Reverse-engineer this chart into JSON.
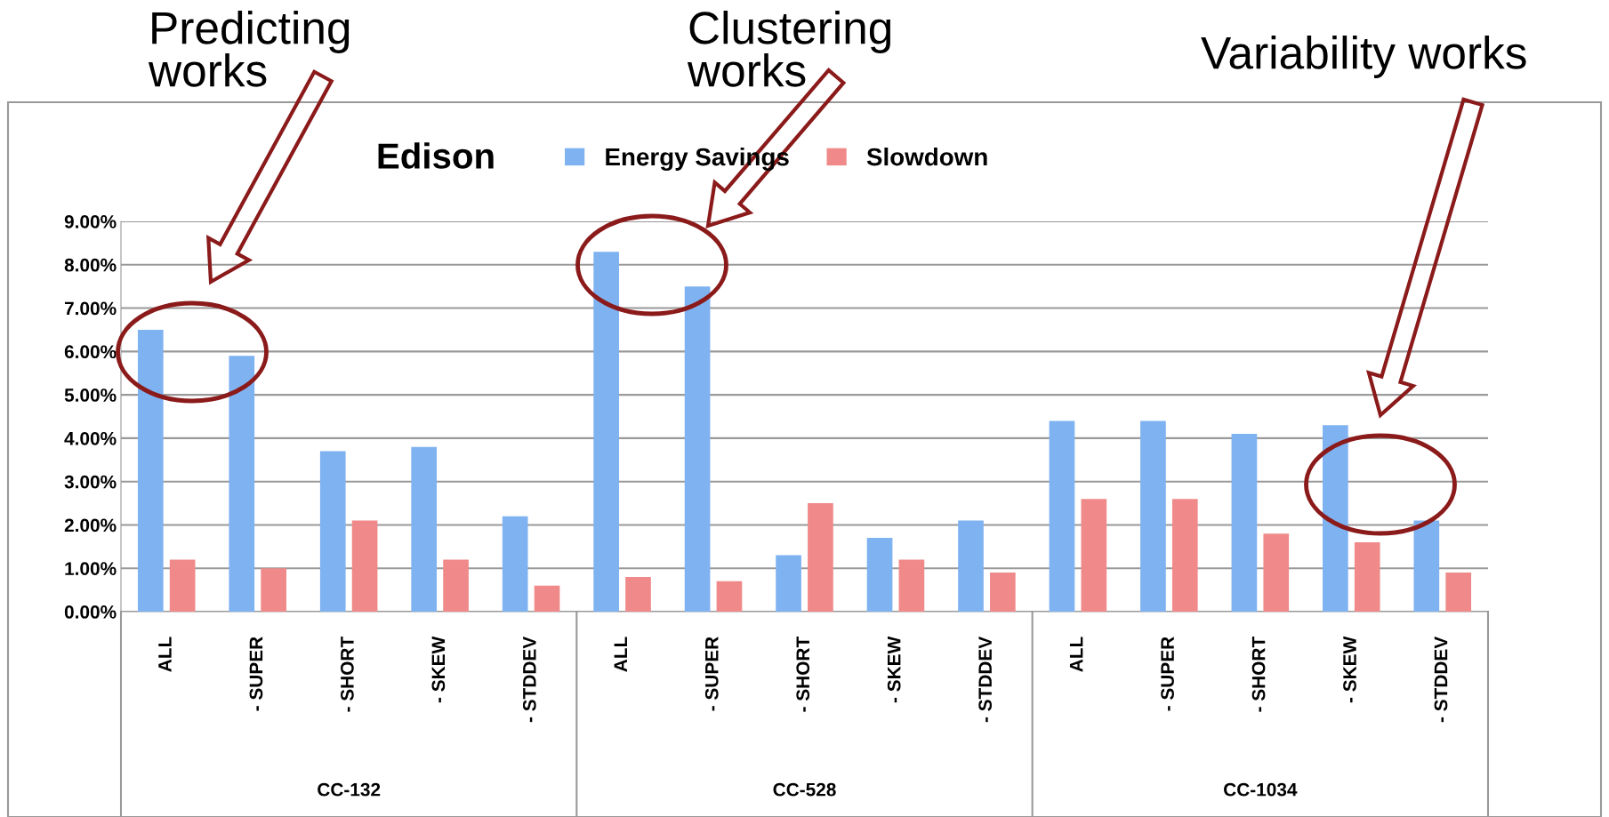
{
  "chart_data": {
    "type": "bar",
    "title": "Edison",
    "categories": [
      "ALL",
      "- SUPER",
      "- SHORT",
      "- SKEW",
      "- STDDEV",
      "ALL",
      "- SUPER",
      "- SHORT",
      "- SKEW",
      "- STDDEV",
      "ALL",
      "- SUPER",
      "- SHORT",
      "- SKEW",
      "- STDDEV"
    ],
    "series": [
      {
        "name": "Energy Savings",
        "color": "#7fb2f0",
        "values": [
          6.5,
          5.9,
          3.7,
          3.8,
          2.2,
          8.3,
          7.5,
          1.3,
          1.7,
          2.1,
          4.4,
          4.4,
          4.1,
          4.3,
          2.1
        ]
      },
      {
        "name": "Slowdown",
        "color": "#f08a8a",
        "values": [
          1.2,
          1.0,
          2.1,
          1.2,
          0.6,
          0.8,
          0.7,
          2.5,
          1.2,
          0.9,
          2.6,
          2.6,
          1.8,
          1.6,
          0.9
        ]
      }
    ],
    "ylim": [
      0,
      9
    ],
    "yticks": [
      {
        "value": 0,
        "label": "0.00%"
      },
      {
        "value": 1,
        "label": "1.00%"
      },
      {
        "value": 2,
        "label": "2.00%"
      },
      {
        "value": 3,
        "label": "3.00%"
      },
      {
        "value": 4,
        "label": "4.00%"
      },
      {
        "value": 5,
        "label": "5.00%"
      },
      {
        "value": 6,
        "label": "6.00%"
      },
      {
        "value": 7,
        "label": "7.00%"
      },
      {
        "value": 8,
        "label": "8.00%"
      },
      {
        "value": 9,
        "label": "9.00%"
      }
    ],
    "grid": "y",
    "legend": "top",
    "annotations": [
      "CC-132",
      "CC-528",
      "CC-1034",
      "Predicting\nworks",
      "Clustering\nworks",
      "Variability works"
    ]
  }
}
